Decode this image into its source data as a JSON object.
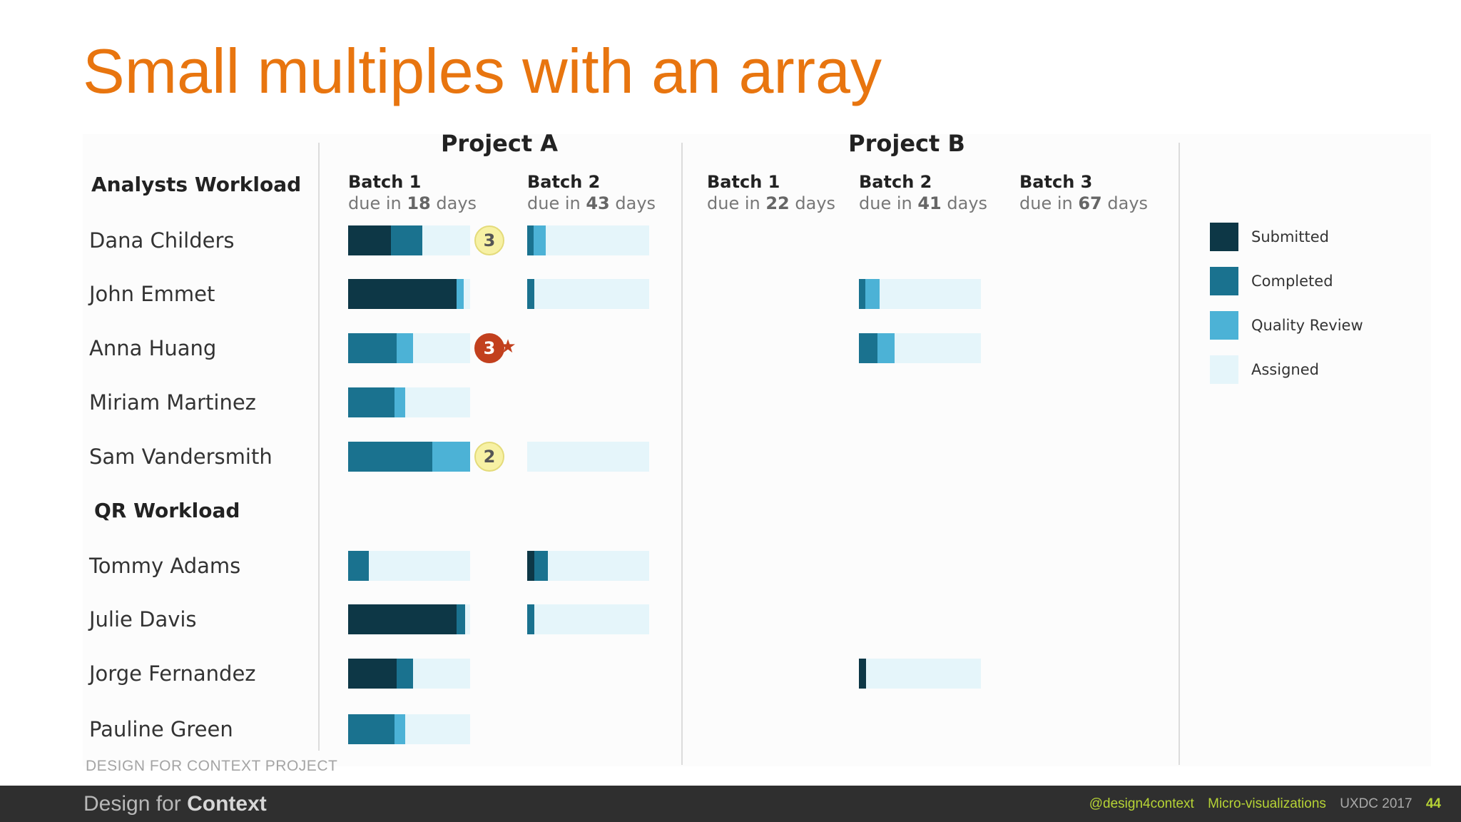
{
  "title": "Small multiples with an array",
  "chart_data": {
    "type": "bar",
    "stacked": true,
    "segments": [
      "Submitted",
      "Completed",
      "Quality Review",
      "Assigned"
    ],
    "colors": {
      "Submitted": "#0d3746",
      "Completed": "#1a728f",
      "Quality Review": "#4cb2d6",
      "Assigned": "#e5f5fa"
    },
    "legend_position": "right",
    "projects": [
      {
        "name": "Project A",
        "batches": [
          {
            "name": "Batch 1",
            "due_prefix": "due in",
            "days": "18",
            "due_suffix": "days"
          },
          {
            "name": "Batch 2",
            "due_prefix": "due in",
            "days": "43",
            "due_suffix": "days"
          }
        ]
      },
      {
        "name": "Project B",
        "batches": [
          {
            "name": "Batch 1",
            "due_prefix": "due in",
            "days": "22",
            "due_suffix": "days"
          },
          {
            "name": "Batch 2",
            "due_prefix": "due in",
            "days": "41",
            "due_suffix": "days"
          },
          {
            "name": "Batch 3",
            "due_prefix": "due in",
            "days": "67",
            "due_suffix": "days"
          }
        ]
      }
    ],
    "groups": [
      {
        "name": "Analysts Workload",
        "rows": [
          {
            "name": "Dana Childers",
            "cells": [
              {
                "values": [
                  35,
                  26,
                  0,
                  39
                ],
                "badge": "3",
                "badge_style": "yellow"
              },
              {
                "values": [
                  0,
                  5,
                  10,
                  85
                ]
              },
              null,
              null,
              null
            ]
          },
          {
            "name": "John Emmet",
            "cells": [
              {
                "values": [
                  89,
                  0,
                  6,
                  5
                ]
              },
              {
                "values": [
                  0,
                  6,
                  0,
                  94
                ]
              },
              null,
              {
                "values": [
                  0,
                  5,
                  12,
                  83
                ]
              },
              null
            ]
          },
          {
            "name": "Anna Huang",
            "cells": [
              {
                "values": [
                  0,
                  40,
                  13,
                  47
                ],
                "badge": "3",
                "badge_style": "red-star"
              },
              null,
              null,
              {
                "values": [
                  0,
                  15,
                  14,
                  71
                ]
              },
              null
            ]
          },
          {
            "name": "Miriam Martinez",
            "cells": [
              {
                "values": [
                  0,
                  38,
                  9,
                  53
                ]
              },
              null,
              null,
              null,
              null
            ]
          },
          {
            "name": "Sam Vandersmith",
            "cells": [
              {
                "values": [
                  0,
                  69,
                  31,
                  0
                ],
                "badge": "2",
                "badge_style": "yellow"
              },
              {
                "values": [
                  0,
                  0,
                  0,
                  100
                ]
              },
              null,
              null,
              null
            ]
          }
        ]
      },
      {
        "name": "QR Workload",
        "rows": [
          {
            "name": "Tommy Adams",
            "cells": [
              {
                "values": [
                  0,
                  17,
                  0,
                  83
                ]
              },
              {
                "values": [
                  6,
                  11,
                  0,
                  83
                ]
              },
              null,
              null,
              null
            ]
          },
          {
            "name": "Julie Davis",
            "cells": [
              {
                "values": [
                  89,
                  7,
                  0,
                  4
                ]
              },
              {
                "values": [
                  0,
                  6,
                  0,
                  94
                ]
              },
              null,
              null,
              null
            ]
          },
          {
            "name": "Jorge Fernandez",
            "cells": [
              {
                "values": [
                  40,
                  13,
                  0,
                  47
                ]
              },
              null,
              null,
              {
                "values": [
                  6,
                  0,
                  0,
                  94
                ]
              },
              null
            ]
          },
          {
            "name": "Pauline Green",
            "cells": [
              {
                "values": [
                  0,
                  38,
                  9,
                  53
                ]
              },
              null,
              null,
              null,
              null
            ]
          }
        ]
      }
    ]
  },
  "footer": {
    "caption": "DESIGN FOR CONTEXT PROJECT",
    "brand_light": "Design for",
    "brand_bold": "Context",
    "handle": "@design4context",
    "topic": "Micro-visualizations",
    "event": "UXDC 2017",
    "page": "44",
    "handle_color": "#b6d335",
    "topic_color": "#b6d335",
    "event_color": "#a9a9a9",
    "page_color": "#b6d335"
  }
}
